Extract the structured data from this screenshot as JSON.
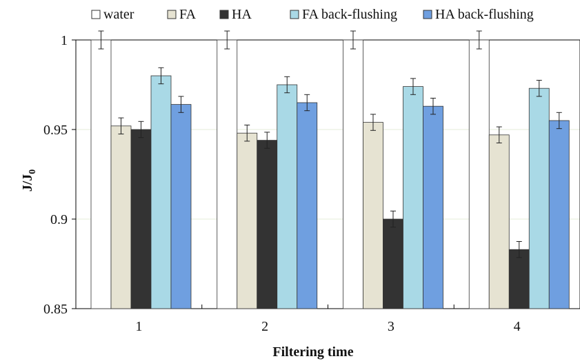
{
  "chart_data": {
    "type": "bar",
    "title": "",
    "xlabel": "Filtering time",
    "ylabel": "J/J",
    "ylabel_subscript": "0",
    "categories": [
      "1",
      "2",
      "3",
      "4"
    ],
    "ylim": [
      0.85,
      1.0
    ],
    "yticks": [
      0.85,
      0.9,
      0.95,
      1
    ],
    "ytick_labels": [
      "0.85",
      "0.9",
      "0.95",
      "1"
    ],
    "grid": true,
    "legend_position": "top",
    "series": [
      {
        "name": "water",
        "color": "#ffffff",
        "values": [
          1.0,
          1.0,
          1.0,
          1.0
        ],
        "errors": [
          0.005,
          0.005,
          0.005,
          0.005
        ]
      },
      {
        "name": "FA",
        "color": "#e6e3d2",
        "values": [
          0.952,
          0.948,
          0.954,
          0.947
        ],
        "errors": [
          0.0045,
          0.0045,
          0.0045,
          0.0045
        ]
      },
      {
        "name": "HA",
        "color": "#333333",
        "values": [
          0.95,
          0.944,
          0.9,
          0.883
        ],
        "errors": [
          0.0045,
          0.0045,
          0.0045,
          0.0045
        ]
      },
      {
        "name": "FA back-flushing",
        "color": "#a9d9e6",
        "values": [
          0.98,
          0.975,
          0.974,
          0.973
        ],
        "errors": [
          0.0045,
          0.0045,
          0.0045,
          0.0045
        ]
      },
      {
        "name": "HA back-flushing",
        "color": "#6f9fe0",
        "values": [
          0.964,
          0.965,
          0.963,
          0.955
        ],
        "errors": [
          0.0045,
          0.0045,
          0.0045,
          0.0045
        ]
      }
    ]
  }
}
